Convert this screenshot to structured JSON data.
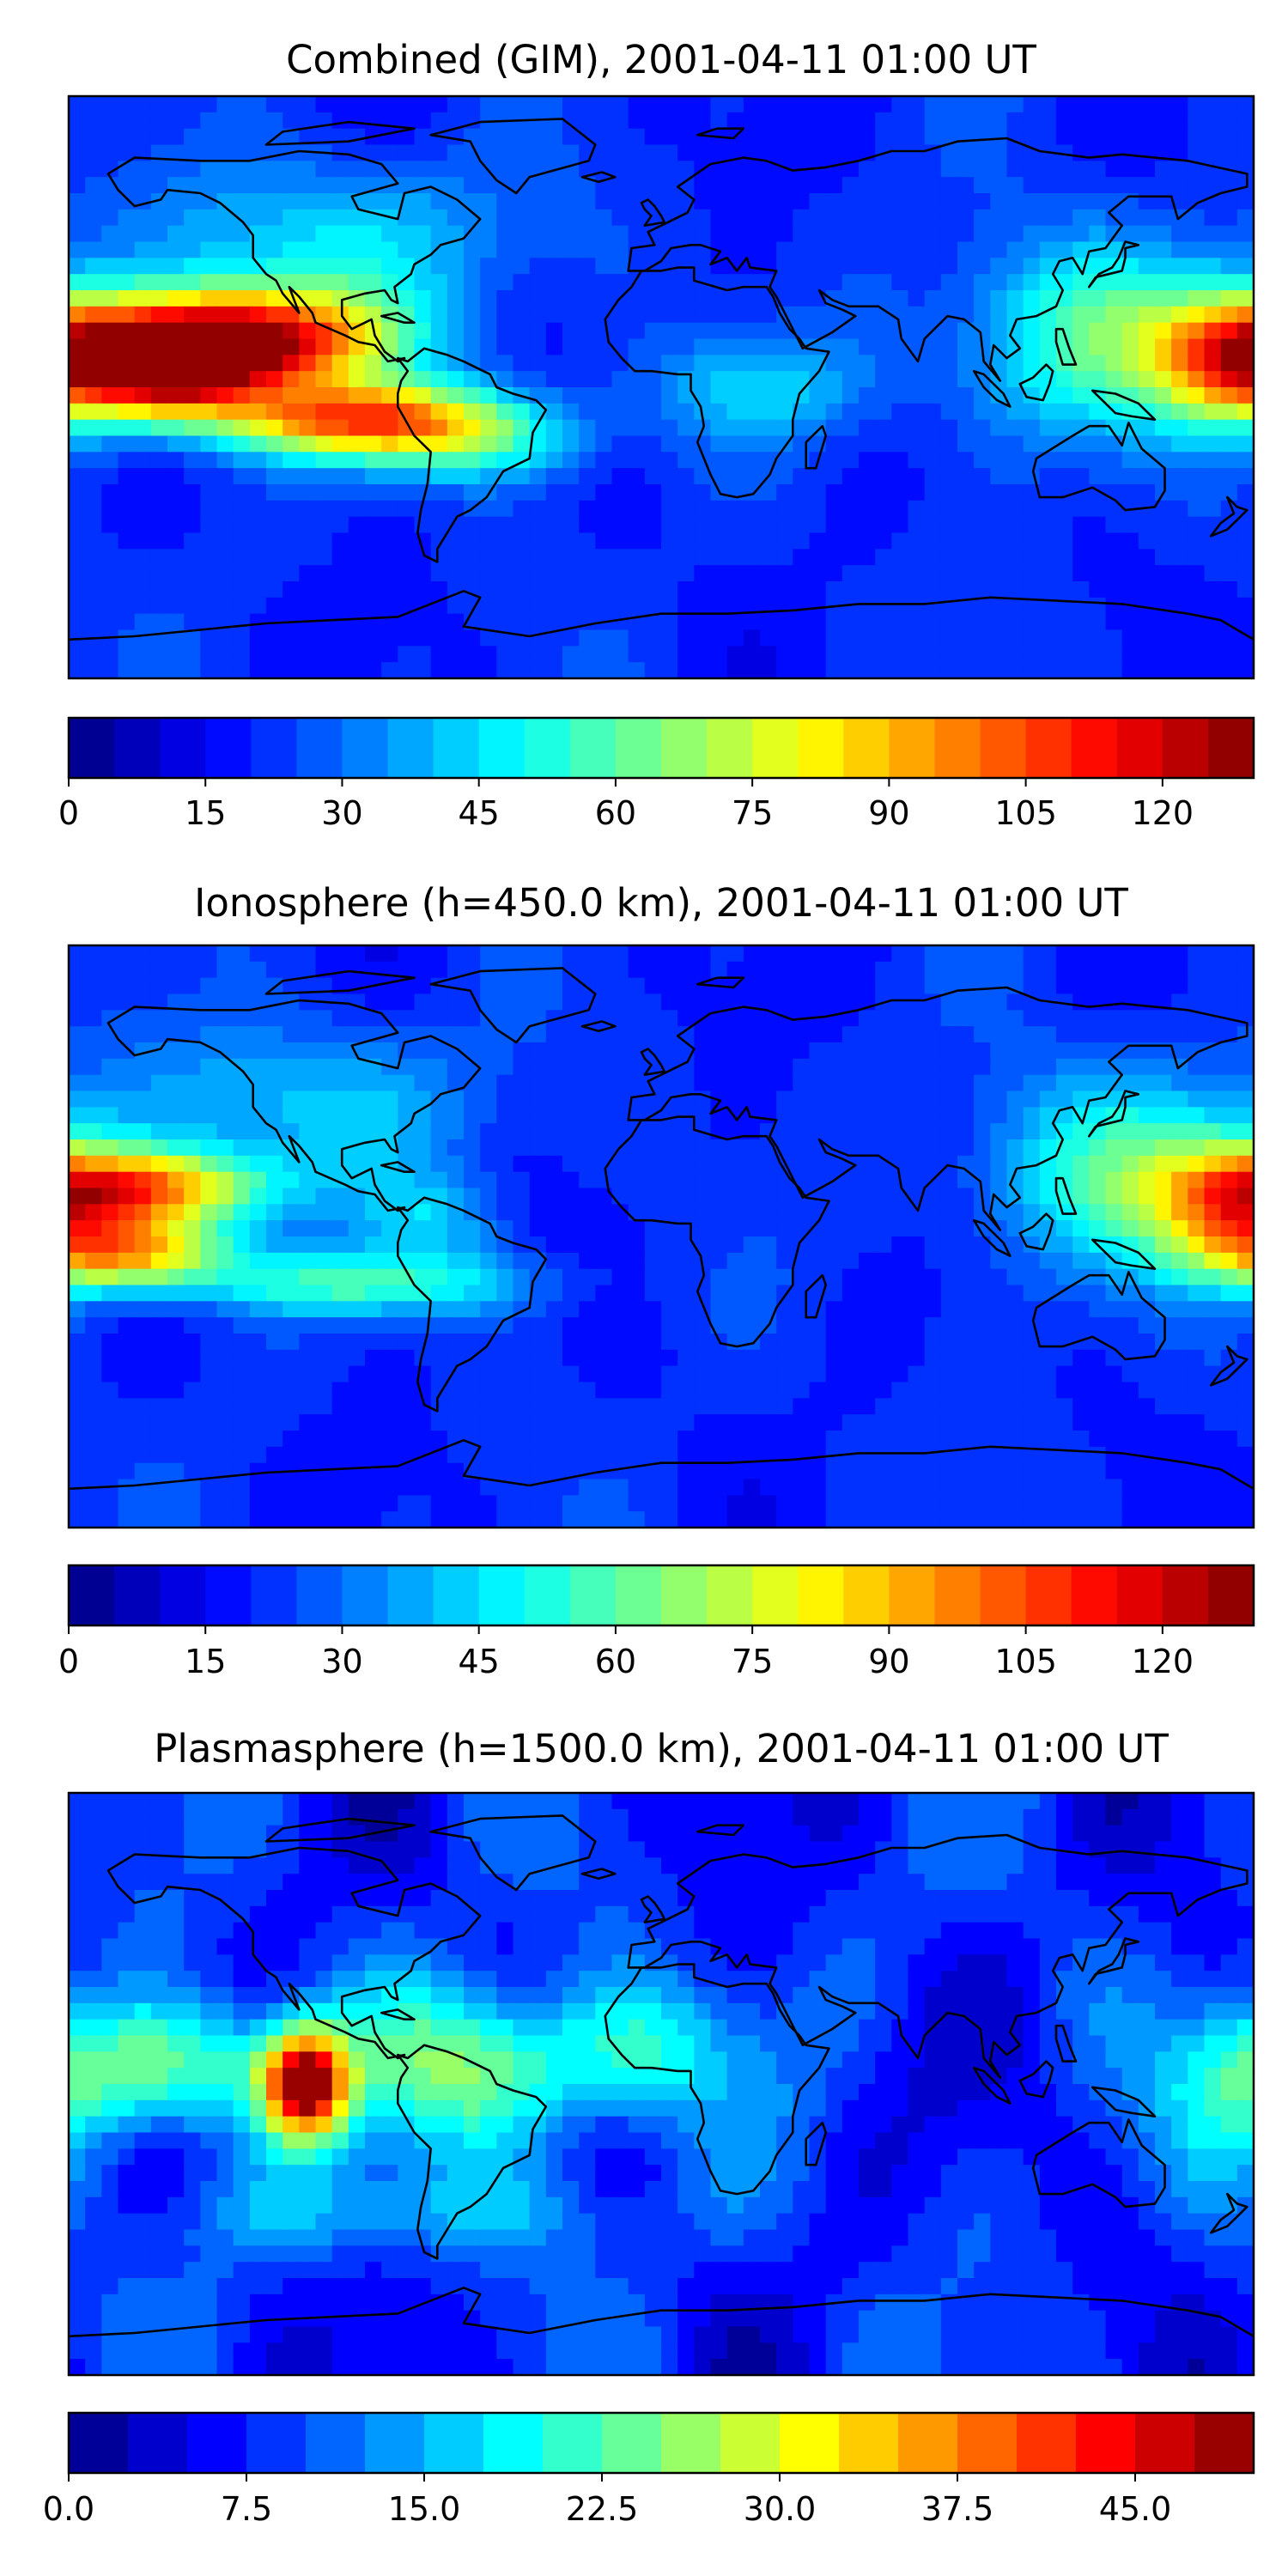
{
  "chart_data": [
    {
      "type": "heatmap",
      "title": "Combined (GIM), 2001-04-11 01:00 UT",
      "colormap": "jet",
      "colorbar": {
        "range": [
          0,
          130
        ],
        "levels": 26,
        "ticks": [
          0,
          15,
          30,
          45,
          60,
          75,
          90,
          105,
          120
        ],
        "tick_labels": [
          "0",
          "15",
          "30",
          "45",
          "60",
          "75",
          "90",
          "105",
          "120"
        ]
      },
      "map": {
        "projection": "equirectangular",
        "extent": [
          -180,
          180,
          -90,
          90
        ],
        "coastlines": true
      },
      "features": [
        {
          "lon": -125,
          "lat": 15,
          "value": 118,
          "spread_lon": 30,
          "spread_lat": 11
        },
        {
          "lon": -150,
          "lat": 5,
          "value": 110,
          "spread_lon": 20,
          "spread_lat": 11
        },
        {
          "lon": -95,
          "lat": -10,
          "value": 90,
          "spread_lon": 28,
          "spread_lat": 8
        },
        {
          "lon": -60,
          "lat": -15,
          "value": 55,
          "spread_lon": 26,
          "spread_lat": 10
        },
        {
          "lon": 175,
          "lat": 10,
          "value": 95,
          "spread_lon": 18,
          "spread_lat": 14
        },
        {
          "lon": 130,
          "lat": 15,
          "value": 58,
          "spread_lon": 28,
          "spread_lat": 22
        },
        {
          "lon": -100,
          "lat": 45,
          "value": 45,
          "spread_lon": 40,
          "spread_lat": 18
        },
        {
          "lon": 30,
          "lat": 0,
          "value": 40,
          "spread_lon": 25,
          "spread_lat": 12
        }
      ]
    },
    {
      "type": "heatmap",
      "title": "Ionosphere  (h=450.0 km), 2001-04-11 01:00 UT",
      "colormap": "jet",
      "colorbar": {
        "range": [
          0,
          130
        ],
        "levels": 26,
        "ticks": [
          0,
          15,
          30,
          45,
          60,
          75,
          90,
          105,
          120
        ],
        "tick_labels": [
          "0",
          "15",
          "30",
          "45",
          "60",
          "75",
          "90",
          "105",
          "120"
        ]
      },
      "map": {
        "projection": "equirectangular",
        "extent": [
          -180,
          180,
          -90,
          90
        ],
        "coastlines": true
      },
      "features": [
        {
          "lon": -155,
          "lat": 15,
          "value": 88,
          "spread_lon": 25,
          "spread_lat": 8
        },
        {
          "lon": -160,
          "lat": -5,
          "value": 85,
          "spread_lon": 22,
          "spread_lat": 8
        },
        {
          "lon": -90,
          "lat": -15,
          "value": 55,
          "spread_lon": 35,
          "spread_lat": 7
        },
        {
          "lon": -70,
          "lat": 5,
          "value": 40,
          "spread_lon": 15,
          "spread_lat": 10
        },
        {
          "lon": 175,
          "lat": 10,
          "value": 72,
          "spread_lon": 18,
          "spread_lat": 14
        },
        {
          "lon": 140,
          "lat": 20,
          "value": 55,
          "spread_lon": 30,
          "spread_lat": 22
        },
        {
          "lon": -110,
          "lat": 40,
          "value": 42,
          "spread_lon": 40,
          "spread_lat": 18
        }
      ]
    },
    {
      "type": "heatmap",
      "title": "Plasmasphere (h=1500.0 km), 2001-04-11 01:00 UT",
      "colormap": "jet",
      "colorbar": {
        "range": [
          0,
          50
        ],
        "levels": 20,
        "ticks": [
          0,
          7.5,
          15,
          22.5,
          30,
          37.5,
          45
        ],
        "tick_labels": [
          "0.0",
          "7.5",
          "15.0",
          "22.5",
          "30.0",
          "37.5",
          "45.0"
        ]
      },
      "map": {
        "projection": "equirectangular",
        "extent": [
          -180,
          180,
          -90,
          90
        ],
        "coastlines": true
      },
      "features": [
        {
          "lon": -108,
          "lat": 0,
          "value": 47,
          "spread_lon": 9,
          "spread_lat": 12
        },
        {
          "lon": -150,
          "lat": 5,
          "value": 26,
          "spread_lon": 25,
          "spread_lat": 15
        },
        {
          "lon": -55,
          "lat": 5,
          "value": 26,
          "spread_lon": 25,
          "spread_lat": 18
        },
        {
          "lon": -5,
          "lat": 10,
          "value": 18,
          "spread_lon": 20,
          "spread_lat": 15
        },
        {
          "lon": 175,
          "lat": 0,
          "value": 16,
          "spread_lon": 15,
          "spread_lat": 20
        },
        {
          "lon": -80,
          "lat": -40,
          "value": 15,
          "spread_lon": 50,
          "spread_lat": 10
        }
      ]
    }
  ]
}
